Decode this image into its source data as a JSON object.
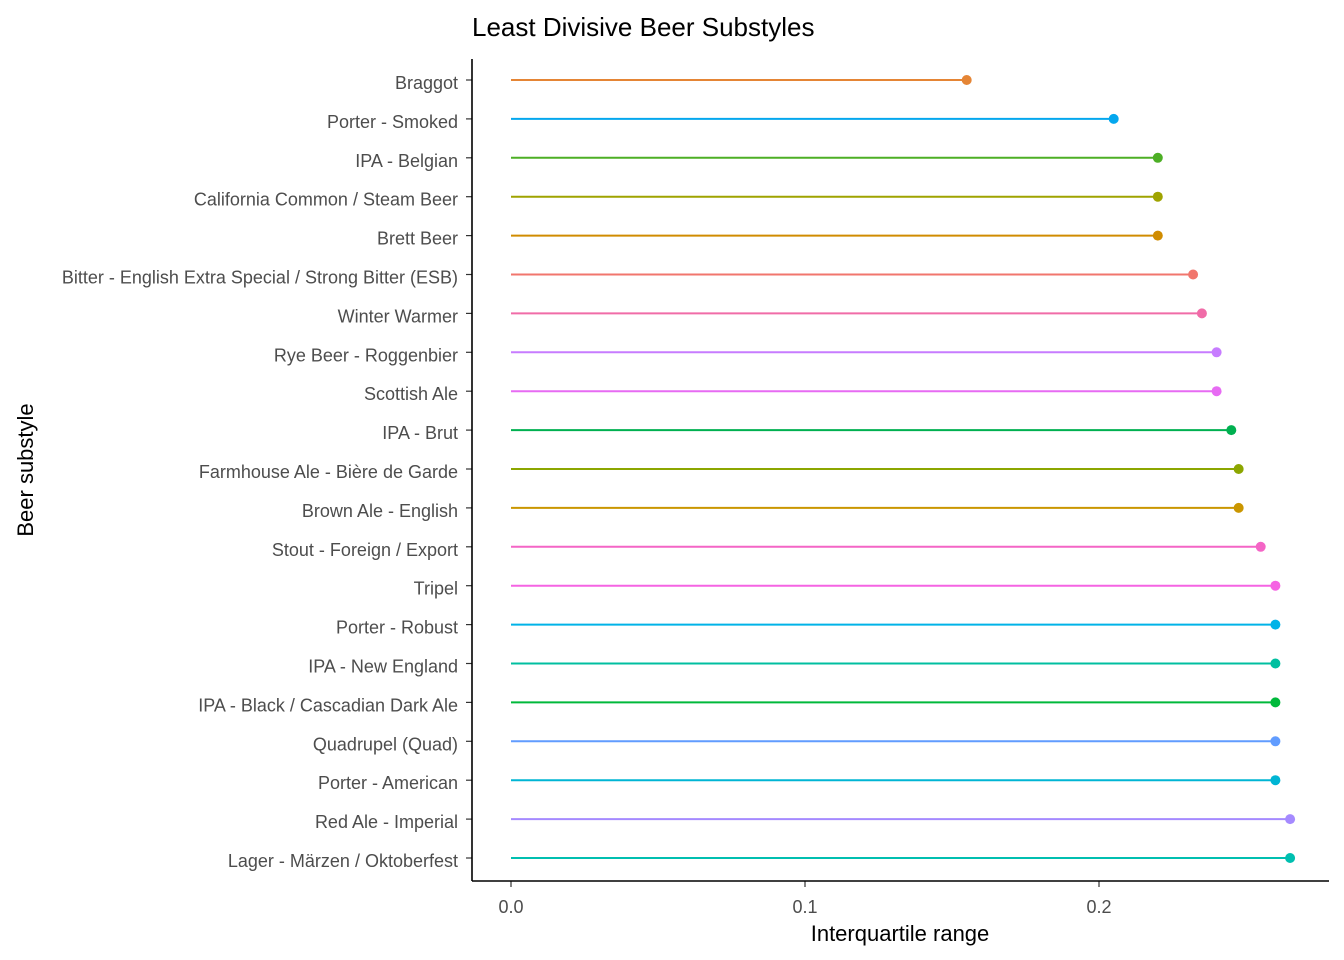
{
  "chart_data": {
    "type": "lollipop",
    "title": "Least Divisive Beer Substyles",
    "xlabel": "Interquartile range",
    "ylabel": "Beer substyle",
    "xlim": [
      -0.013,
      0.278
    ],
    "x_ticks": [
      "0.0",
      "0.1",
      "0.2"
    ],
    "x_tick_values": [
      0.0,
      0.1,
      0.2
    ],
    "grid": false,
    "legend": "none",
    "categories": [
      "Braggot",
      "Porter - Smoked",
      "IPA - Belgian",
      "California Common / Steam Beer",
      "Brett Beer",
      "Bitter - English Extra Special / Strong Bitter (ESB)",
      "Winter Warmer",
      "Rye Beer - Roggenbier",
      "Scottish Ale",
      "IPA - Brut",
      "Farmhouse Ale - Bière de Garde",
      "Brown Ale - English",
      "Stout - Foreign / Export",
      "Tripel",
      "Porter - Robust",
      "IPA - New England",
      "IPA - Black / Cascadian Dark Ale",
      "Quadrupel (Quad)",
      "Porter - American",
      "Red Ale - Imperial",
      "Lager - Märzen / Oktoberfest"
    ],
    "values": [
      0.155,
      0.205,
      0.22,
      0.22,
      0.22,
      0.232,
      0.235,
      0.24,
      0.24,
      0.245,
      0.2475,
      0.2475,
      0.255,
      0.26,
      0.26,
      0.26,
      0.26,
      0.26,
      0.26,
      0.265,
      0.265
    ],
    "colors": [
      "#E58535",
      "#04A7EE",
      "#4DAF25",
      "#9FA300",
      "#D08C00",
      "#F1766D",
      "#F06CA8",
      "#C77CFF",
      "#E76BF3",
      "#00B050",
      "#8CA600",
      "#CA9600",
      "#F465C6",
      "#F564E3",
      "#00B3E8",
      "#00BFA0",
      "#00B93B",
      "#619CFF",
      "#00B5D4",
      "#A58AFF",
      "#00BFB0"
    ]
  }
}
